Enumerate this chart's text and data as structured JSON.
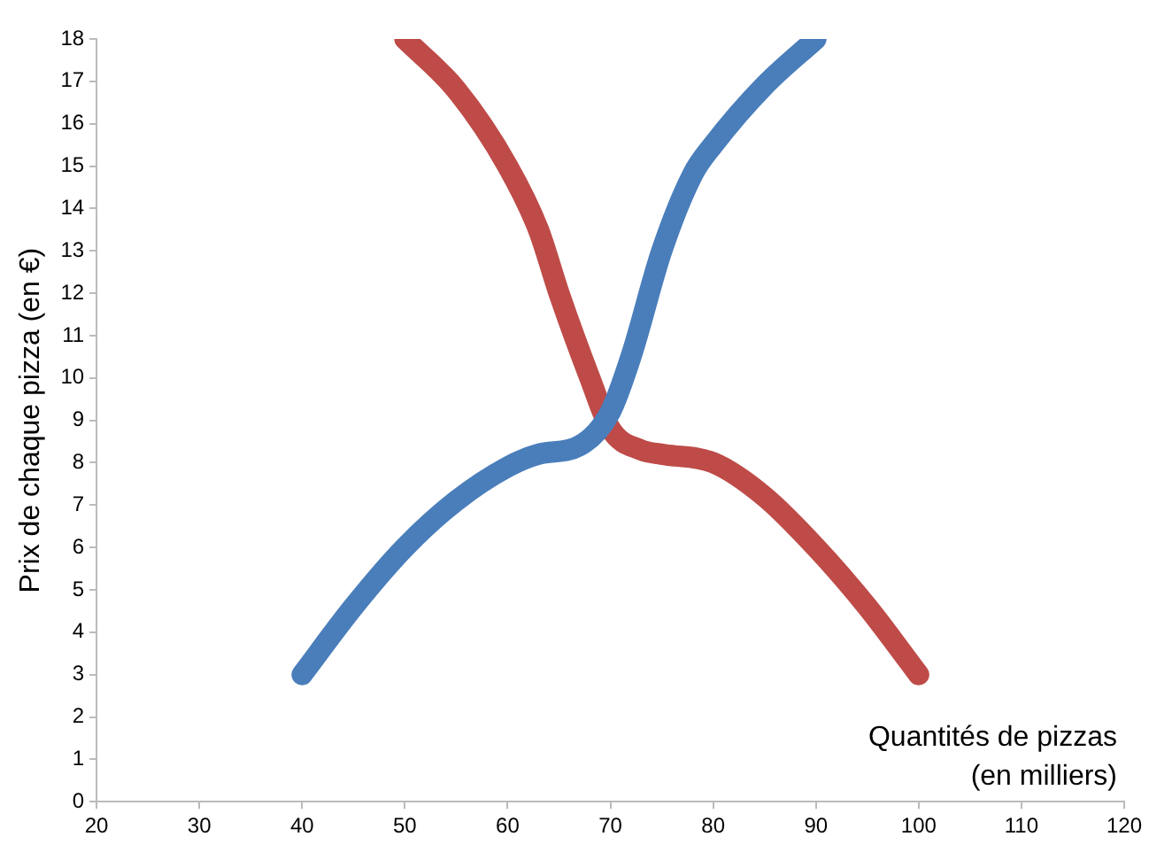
{
  "chart_data": {
    "type": "line",
    "xlabel": "Quantités de pizzas\n(en milliers)",
    "ylabel": "Prix de chaque pizza (en €)",
    "xlim": [
      20,
      120
    ],
    "xticks": [
      20,
      30,
      40,
      50,
      60,
      70,
      80,
      90,
      100,
      110,
      120
    ],
    "ylim": [
      0,
      18
    ],
    "yticks": [
      0,
      1,
      2,
      3,
      4,
      5,
      6,
      7,
      8,
      9,
      10,
      11,
      12,
      13,
      14,
      15,
      16,
      17,
      18
    ],
    "grid": false,
    "legend": false,
    "marker": "none",
    "line_style": "solid",
    "series": [
      {
        "color": "#4a7ebb",
        "x": [
          40,
          45,
          50,
          55,
          60,
          63,
          67,
          70,
          72,
          75,
          78,
          80,
          85,
          90
        ],
        "values": [
          3,
          4.6,
          6,
          7.1,
          7.9,
          8.2,
          8.4,
          9.2,
          10.5,
          13,
          14.8,
          15.5,
          16.9,
          18
        ]
      },
      {
        "color": "#be4b48",
        "x": [
          50,
          55,
          60,
          63,
          65,
          68,
          70,
          73,
          75,
          80,
          85,
          90,
          95,
          100
        ],
        "values": [
          18,
          16.8,
          15,
          13.5,
          12,
          10,
          8.8,
          8.3,
          8.2,
          8,
          7.2,
          6,
          4.6,
          3
        ]
      }
    ]
  }
}
